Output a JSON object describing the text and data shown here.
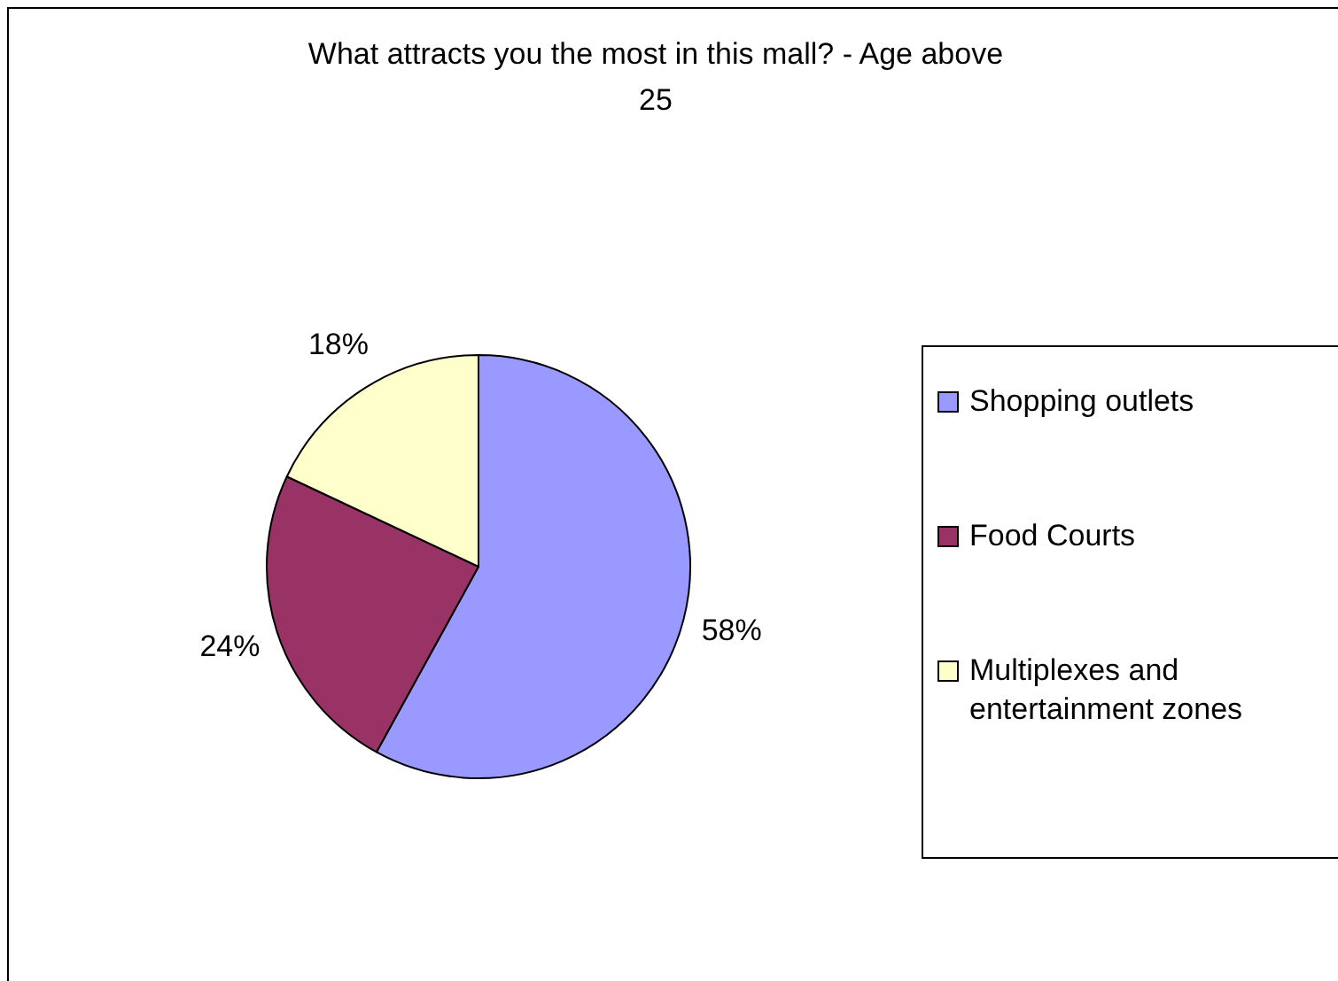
{
  "chart_data": {
    "type": "pie",
    "title": "What attracts you the most in this mall? - Age above 25",
    "categories": [
      "Shopping outlets",
      "Food Courts",
      "Multiplexes and entertainment zones"
    ],
    "values": [
      58,
      24,
      18
    ],
    "colors": [
      "#9999ff",
      "#993366",
      "#ffffcc"
    ],
    "value_labels": [
      "58%",
      "24%",
      "18%"
    ],
    "legend": "right"
  }
}
